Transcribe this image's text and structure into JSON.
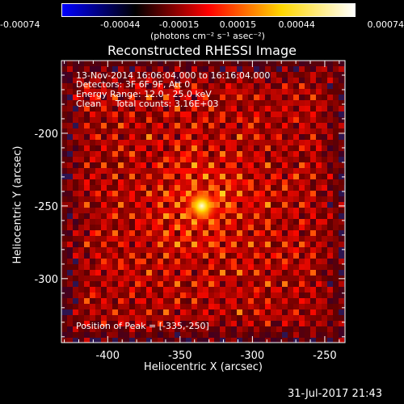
{
  "colorbar": {
    "ticks": [
      "-0.00074",
      "-0.00044",
      "-0.00015",
      "0.00015",
      "0.00044",
      "0.00074"
    ],
    "unit_label": "(photons cm⁻² s⁻¹ asec⁻²)",
    "colors": [
      "#0000ff",
      "#000000",
      "#ff0000",
      "#ffd700",
      "#ffffff"
    ]
  },
  "chart_data": {
    "type": "heatmap",
    "title": "Reconstructed RHESSI Image",
    "xlabel": "Heliocentric X (arcsec)",
    "ylabel": "Heliocentric Y (arcsec)",
    "xlim": [
      -432,
      -236
    ],
    "ylim": [
      -344,
      -150
    ],
    "x_ticks": [
      -400,
      -350,
      -300,
      -250
    ],
    "y_ticks": [
      -200,
      -250,
      -300
    ],
    "x_tick_labels": [
      "-400",
      "-350",
      "-300",
      "-250"
    ],
    "y_tick_labels": [
      "-200",
      "-250",
      "-300"
    ],
    "peak": {
      "x": -335,
      "y": -250
    },
    "annotations": {
      "time_range": "13-Nov-2014 16:06:04.000 to 16:16:04.000",
      "detectors": "Detectors: 3F 6F 9F, Att 0",
      "energy_range": "Energy Range: 12.0 - 25.0 keV",
      "clean_counts": "Clean     Total counts: 3.16E+03",
      "peak_position": "Position of Peak = [-335,-250]"
    }
  },
  "footer": {
    "timestamp": "31-Jul-2017 21:43"
  }
}
